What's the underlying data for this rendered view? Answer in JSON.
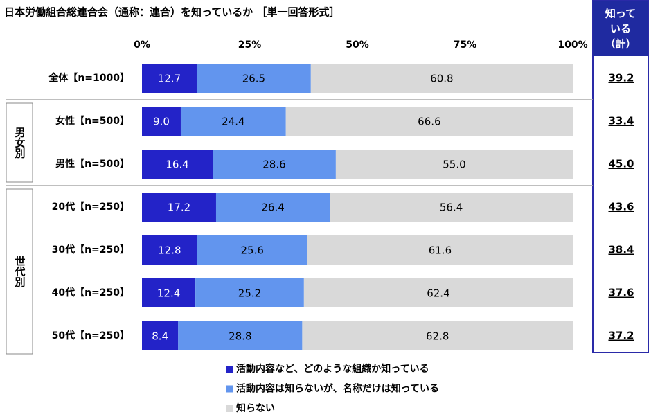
{
  "chart_data": {
    "type": "stacked-bar-horizontal",
    "title": "日本労働組合総連合会（通称：連合）を知っているか ［単一回答形式］",
    "categories": [
      "全体【n=1000】",
      "女性【n=500】",
      "男性【n=500】",
      "20代【n=250】",
      "30代【n=250】",
      "40代【n=250】",
      "50代【n=250】"
    ],
    "category_groups": [
      null,
      "男女別",
      "男女別",
      "世代別",
      "世代別",
      "世代別",
      "世代別"
    ],
    "series": [
      {
        "name": "活動内容など、どのような組織か知っている",
        "color": "#2323c8",
        "values": [
          12.7,
          9.0,
          16.4,
          17.2,
          12.8,
          12.4,
          8.4
        ],
        "value_labels": [
          "12.7",
          "9.0",
          "16.4",
          "17.2",
          "12.8",
          "12.4",
          "8.4"
        ]
      },
      {
        "name": "活動内容は知らないが、名称だけは知っている",
        "color": "#6295ee",
        "values": [
          26.5,
          24.4,
          28.6,
          26.4,
          25.6,
          25.2,
          28.8
        ],
        "value_labels": [
          "26.5",
          "24.4",
          "28.6",
          "26.4",
          "25.6",
          "25.2",
          "28.8"
        ]
      },
      {
        "name": "知らない",
        "color": "#d9d9d9",
        "values": [
          60.8,
          66.6,
          55.0,
          56.4,
          61.6,
          62.4,
          62.8
        ],
        "value_labels": [
          "60.8",
          "66.6",
          "55.0",
          "56.4",
          "61.6",
          "62.4",
          "62.8"
        ]
      }
    ],
    "xlim": [
      0,
      100
    ],
    "xticks": [
      {
        "value": 0,
        "label": "0%"
      },
      {
        "value": 25,
        "label": "25%"
      },
      {
        "value": 50,
        "label": "50%"
      },
      {
        "value": 75,
        "label": "75%"
      },
      {
        "value": 100,
        "label": "100%"
      }
    ],
    "totals": {
      "header": [
        "知って",
        "いる",
        "（計）"
      ],
      "values": [
        39.2,
        33.4,
        45.0,
        43.6,
        38.4,
        37.6,
        37.2
      ],
      "value_labels": [
        "39.2",
        "33.4",
        "45.0",
        "43.6",
        "38.4",
        "37.6",
        "37.2"
      ]
    }
  }
}
